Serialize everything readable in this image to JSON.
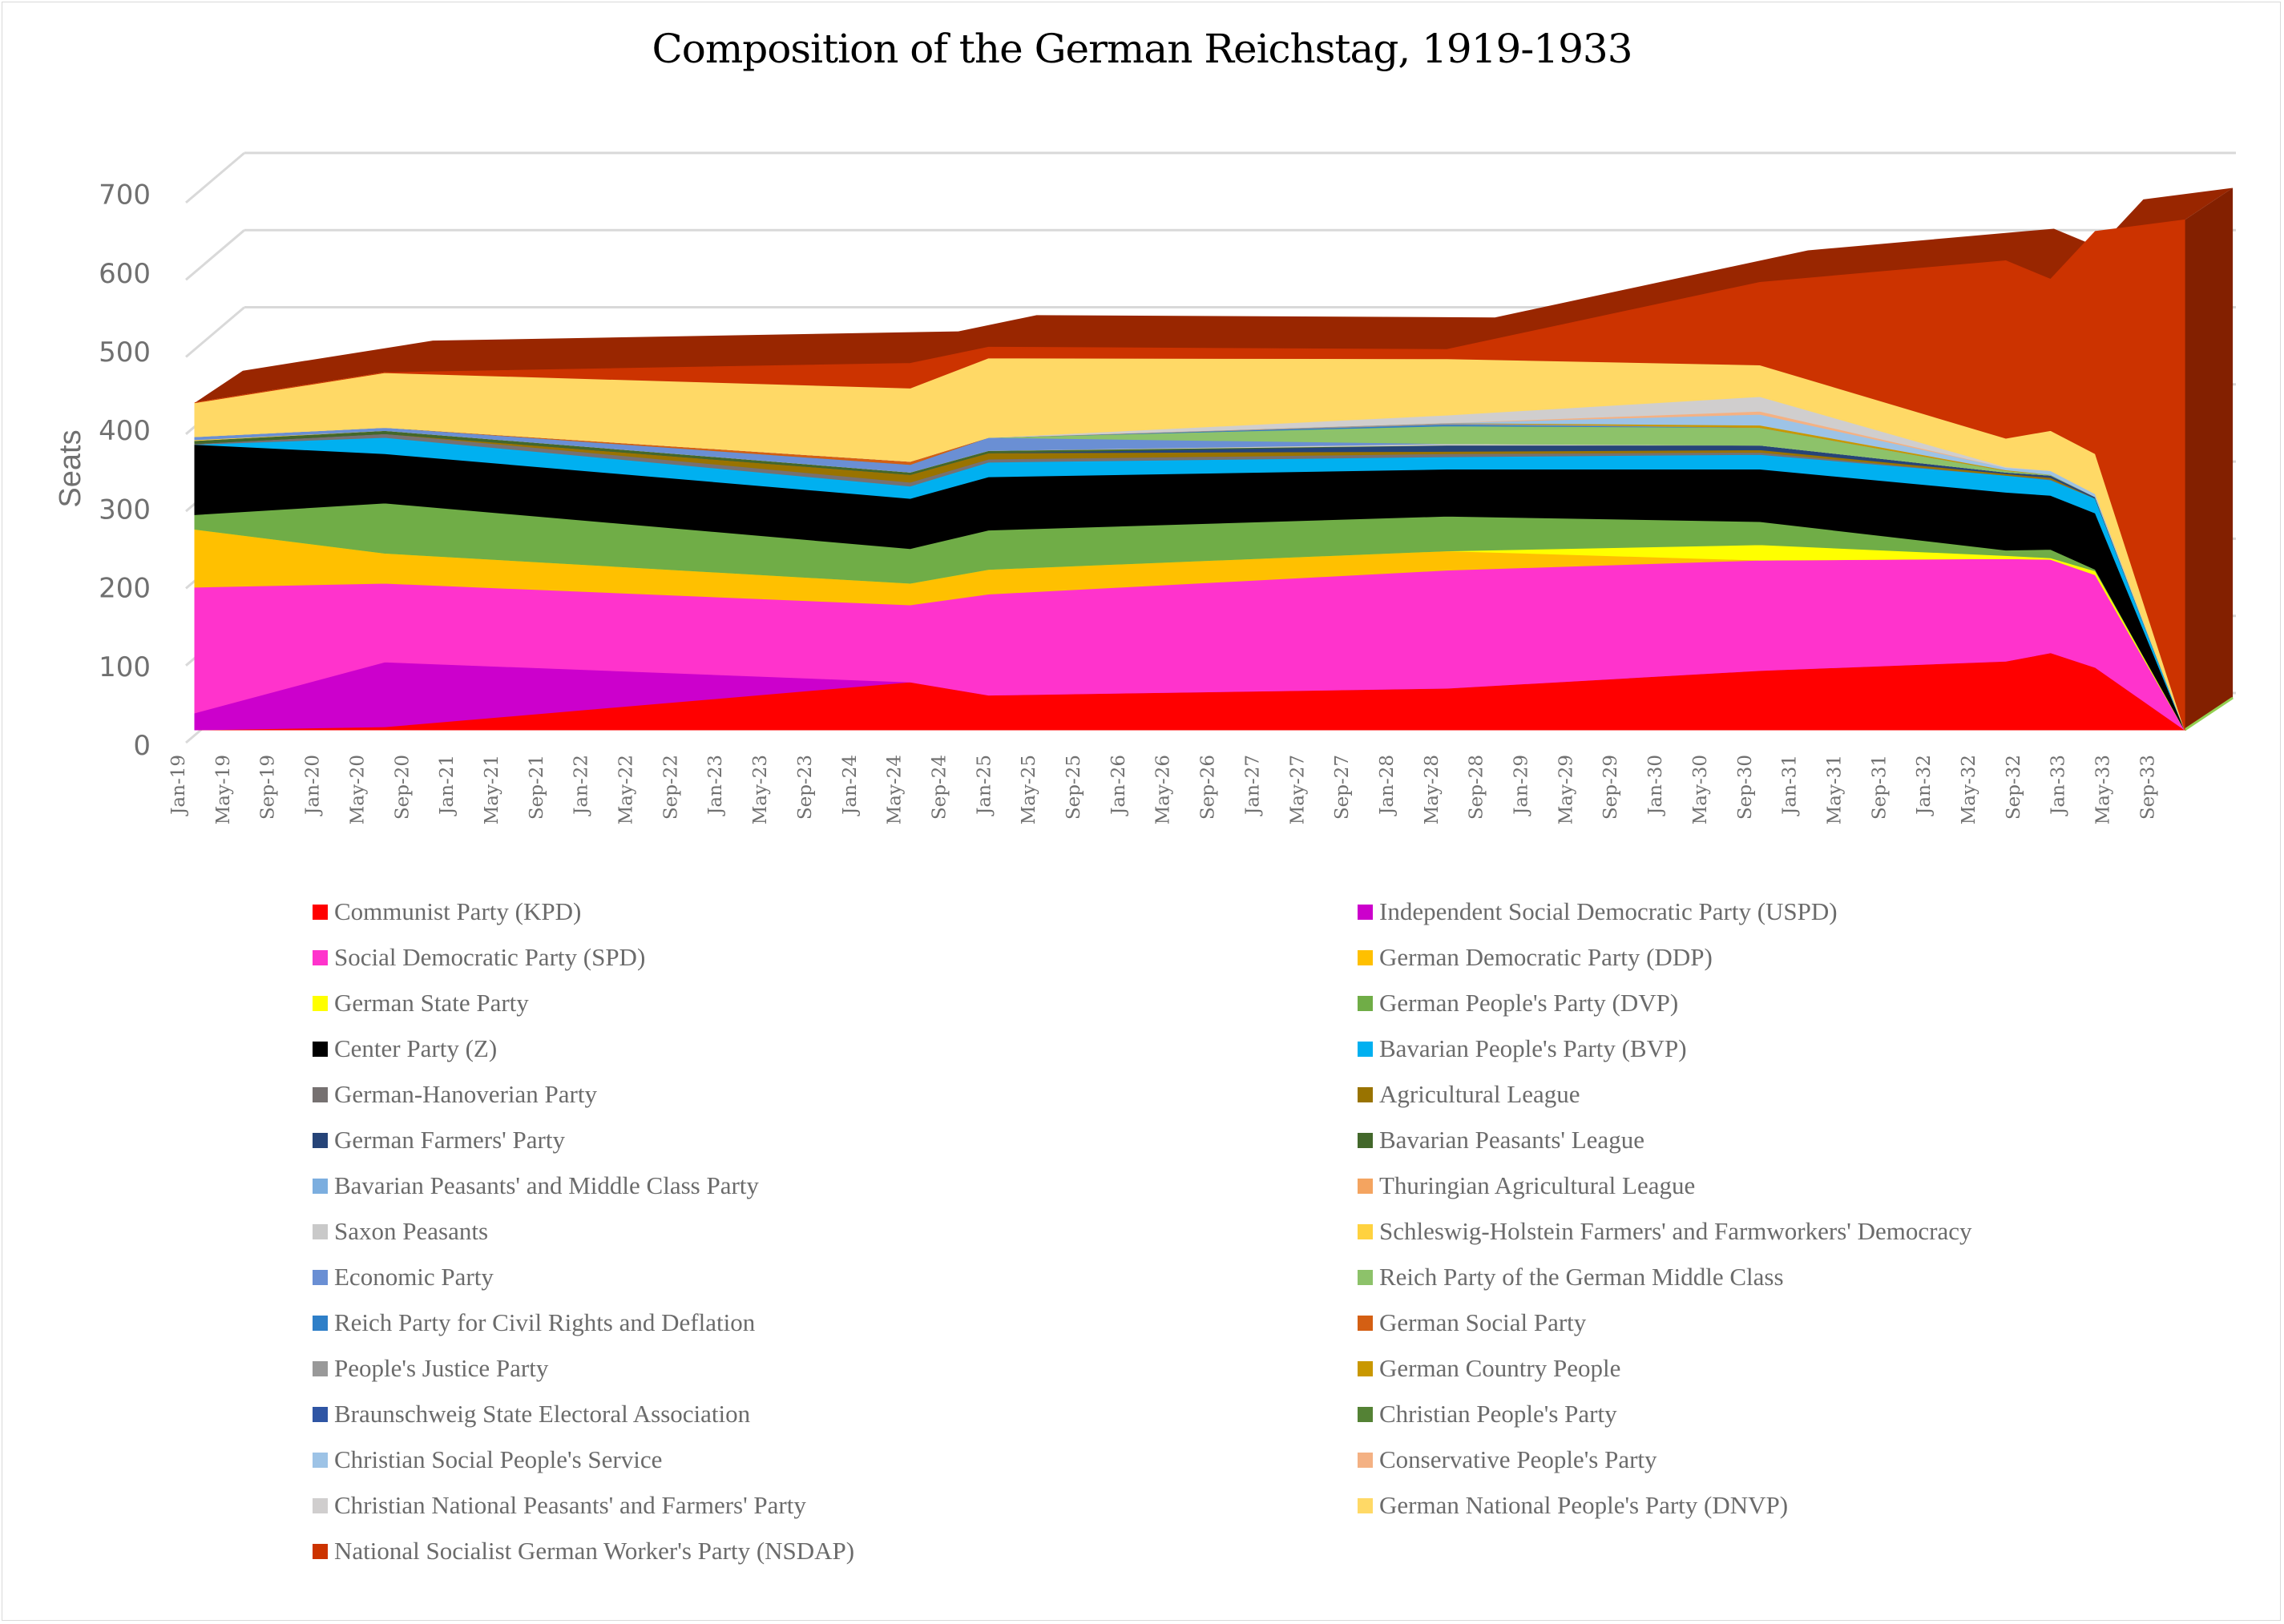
{
  "chart_data": {
    "type": "area",
    "subtype": "3d-stacked-area",
    "title": "Composition of the German Reichstag, 1919-1933",
    "xlabel": "",
    "ylabel": "Seats",
    "ylim": [
      0,
      700
    ],
    "yticks": [
      "0",
      "100",
      "200",
      "300",
      "400",
      "500",
      "600",
      "700"
    ],
    "grid": true,
    "legend_position": "bottom",
    "xtick_labels": [
      "Jan-19",
      "May-19",
      "Sep-19",
      "Jan-20",
      "May-20",
      "Sep-20",
      "Jan-21",
      "May-21",
      "Sep-21",
      "Jan-22",
      "May-22",
      "Sep-22",
      "Jan-23",
      "May-23",
      "Sep-23",
      "Jan-24",
      "May-24",
      "Sep-24",
      "Jan-25",
      "May-25",
      "Sep-25",
      "Jan-26",
      "May-26",
      "Sep-26",
      "Jan-27",
      "May-27",
      "Sep-27",
      "Jan-28",
      "May-28",
      "Sep-28",
      "Jan-29",
      "May-29",
      "Sep-29",
      "Jan-30",
      "May-30",
      "Sep-30",
      "Jan-31",
      "May-31",
      "Sep-31",
      "Jan-32",
      "May-32",
      "Sep-32",
      "Jan-33",
      "May-33",
      "Sep-33"
    ],
    "x": [
      "Jan-19",
      "Jun-20",
      "May-24",
      "Dec-24",
      "May-28",
      "Sep-30",
      "Jul-32",
      "Nov-32",
      "Mar-33",
      "Nov-33"
    ],
    "x_month_index": [
      0,
      17,
      64,
      71,
      112,
      140,
      162,
      166,
      170,
      178
    ],
    "series": [
      {
        "name": "Communist Party (KPD)",
        "color": "#ff0000",
        "values": [
          0,
          4,
          62,
          45,
          54,
          77,
          89,
          100,
          81,
          0
        ]
      },
      {
        "name": "Independent Social Democratic Party (USPD)",
        "color": "#cc00cc",
        "values": [
          22,
          84,
          0,
          0,
          0,
          0,
          0,
          0,
          0,
          0
        ]
      },
      {
        "name": "Social Democratic Party (SPD)",
        "color": "#ff33cc",
        "values": [
          163,
          102,
          100,
          131,
          153,
          143,
          133,
          121,
          120,
          0
        ]
      },
      {
        "name": "German Democratic Party (DDP)",
        "color": "#ffc000",
        "values": [
          75,
          39,
          28,
          32,
          25,
          0,
          0,
          0,
          0,
          0
        ]
      },
      {
        "name": "German State Party",
        "color": "#ffff00",
        "values": [
          0,
          0,
          0,
          0,
          0,
          20,
          4,
          2,
          5,
          0
        ]
      },
      {
        "name": "German People's Party (DVP)",
        "color": "#70ad47",
        "values": [
          19,
          65,
          45,
          51,
          45,
          30,
          7,
          11,
          2,
          0
        ]
      },
      {
        "name": "Center Party (Z)",
        "color": "#000000",
        "values": [
          91,
          64,
          65,
          69,
          61,
          68,
          75,
          70,
          73,
          0
        ]
      },
      {
        "name": "Bavarian People's Party (BVP)",
        "color": "#00b0f0",
        "values": [
          0,
          21,
          16,
          19,
          16,
          19,
          22,
          20,
          19,
          0
        ]
      },
      {
        "name": "German-Hanoverian Party",
        "color": "#767171",
        "values": [
          1,
          5,
          5,
          4,
          4,
          3,
          0,
          1,
          0,
          0
        ]
      },
      {
        "name": "Agricultural League",
        "color": "#997300",
        "values": [
          0,
          0,
          10,
          8,
          3,
          3,
          2,
          2,
          0,
          0
        ]
      },
      {
        "name": "German Farmers' Party",
        "color": "#264478",
        "values": [
          0,
          0,
          0,
          0,
          8,
          6,
          2,
          3,
          2,
          0
        ]
      },
      {
        "name": "Bavarian Peasants' League",
        "color": "#43682b",
        "values": [
          4,
          4,
          3,
          3,
          0,
          0,
          0,
          0,
          0,
          0
        ]
      },
      {
        "name": "Bavarian Peasants' and Middle Class Party",
        "color": "#7caedf",
        "values": [
          0,
          0,
          0,
          0,
          0,
          0,
          0,
          0,
          0,
          0
        ]
      },
      {
        "name": "Thuringian Agricultural League",
        "color": "#f4a460",
        "values": [
          0,
          0,
          0,
          0,
          0,
          0,
          0,
          0,
          0,
          0
        ]
      },
      {
        "name": "Saxon Peasants",
        "color": "#c9c9c9",
        "values": [
          0,
          0,
          0,
          0,
          2,
          0,
          0,
          0,
          0,
          0
        ]
      },
      {
        "name": "Schleswig-Holstein Farmers' and Farmworkers' Democracy",
        "color": "#ffd23f",
        "values": [
          1,
          0,
          0,
          0,
          0,
          0,
          0,
          0,
          0,
          0
        ]
      },
      {
        "name": "Economic Party",
        "color": "#6a8fd4",
        "values": [
          4,
          4,
          10,
          17,
          0,
          0,
          0,
          0,
          0,
          0
        ]
      },
      {
        "name": "Reich Party of the German Middle Class",
        "color": "#8dc26a",
        "values": [
          0,
          0,
          0,
          0,
          23,
          23,
          2,
          1,
          0,
          0
        ]
      },
      {
        "name": "Reich Party for Civil Rights and Deflation",
        "color": "#2e7fc8",
        "values": [
          0,
          0,
          0,
          0,
          2,
          0,
          0,
          0,
          0,
          0
        ]
      },
      {
        "name": "German Social Party",
        "color": "#d45f13",
        "values": [
          0,
          0,
          4,
          0,
          0,
          0,
          0,
          0,
          0,
          0
        ]
      },
      {
        "name": "People's Justice Party",
        "color": "#999999",
        "values": [
          0,
          0,
          0,
          0,
          2,
          0,
          0,
          0,
          0,
          0
        ]
      },
      {
        "name": "German Country People",
        "color": "#c99800",
        "values": [
          0,
          0,
          0,
          0,
          0,
          3,
          1,
          0,
          0,
          0
        ]
      },
      {
        "name": "Braunschweig State Electoral Association",
        "color": "#2f55a4",
        "values": [
          0,
          0,
          0,
          0,
          0,
          0,
          0,
          0,
          0,
          0
        ]
      },
      {
        "name": "Christian People's Party",
        "color": "#548235",
        "values": [
          0,
          0,
          0,
          0,
          0,
          0,
          0,
          0,
          0,
          0
        ]
      },
      {
        "name": "Christian Social People's Service",
        "color": "#9dc3e6",
        "values": [
          0,
          0,
          0,
          0,
          0,
          14,
          3,
          5,
          4,
          0
        ]
      },
      {
        "name": "Conservative People's Party",
        "color": "#f4b183",
        "values": [
          0,
          0,
          0,
          0,
          0,
          4,
          0,
          0,
          0,
          0
        ]
      },
      {
        "name": "Christian National Peasants' and Farmers' Party",
        "color": "#d0cece",
        "values": [
          0,
          0,
          0,
          0,
          10,
          19,
          1,
          0,
          0,
          0
        ]
      },
      {
        "name": "German National People's Party (DNVP)",
        "color": "#ffd966",
        "values": [
          44,
          71,
          95,
          103,
          73,
          41,
          37,
          52,
          52,
          0
        ]
      },
      {
        "name": "National Socialist German Worker's Party (NSDAP)",
        "color": "#cc3300",
        "values": [
          0,
          0,
          32,
          14,
          12,
          107,
          230,
          196,
          288,
          661
        ]
      }
    ]
  }
}
